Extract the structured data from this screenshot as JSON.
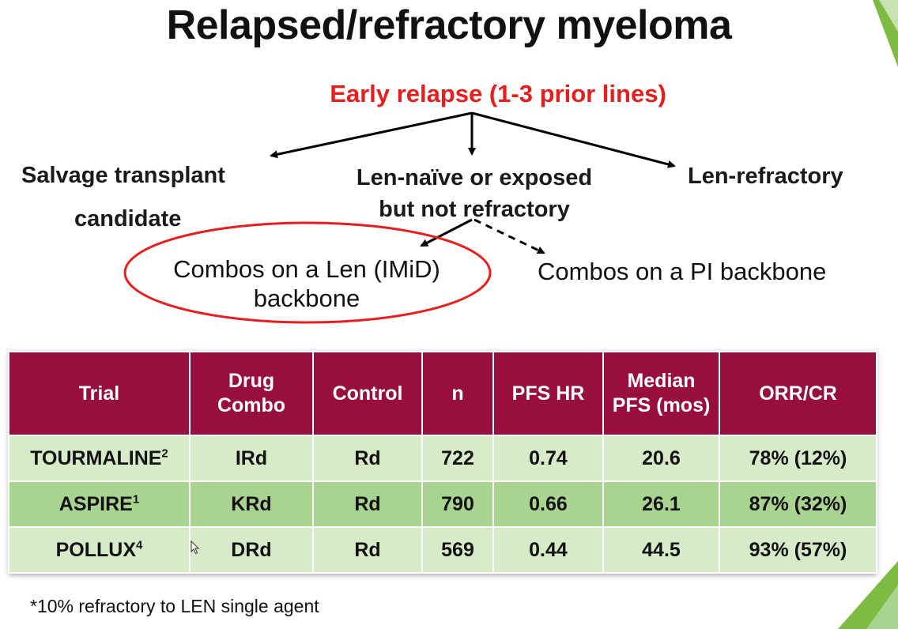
{
  "slide": {
    "title": "Relapsed/refractory myeloma",
    "early_relapse": "Early relapse (1-3 prior lines)",
    "branches": {
      "salvage_line1": "Salvage transplant",
      "salvage_line2": "candidate",
      "len_naive_line1": "Len-naïve or exposed",
      "len_naive_line2": "but not refractory",
      "len_refractory": "Len-refractory"
    },
    "combos": {
      "len_line1": "Combos on a Len (IMiD)",
      "len_line2": "backbone",
      "pi": "Combos on a PI backbone"
    },
    "colors": {
      "highlight_red": "#e81e1e",
      "header_maroon": "#980f3e",
      "row_light": "#d7ebc8",
      "row_mid": "#a9d48f",
      "accent_green": "#7dbb42"
    }
  },
  "table": {
    "headers": {
      "trial": "Trial",
      "drug_line1": "Drug",
      "drug_line2": "Combo",
      "control": "Control",
      "n": "n",
      "pfs_hr": "PFS HR",
      "median_line1": "Median",
      "median_line2": "PFS (mos)",
      "orr": "ORR/CR"
    },
    "rows": [
      {
        "trial": "TOURMALINE",
        "sup": "2",
        "drug": "IRd",
        "control": "Rd",
        "n": "722",
        "pfs_hr": "0.74",
        "median_pfs": "20.6",
        "orr_cr": "78% (12%)"
      },
      {
        "trial": "ASPIRE",
        "sup": "1",
        "drug": "KRd",
        "control": "Rd",
        "n": "790",
        "pfs_hr": "0.66",
        "median_pfs": "26.1",
        "orr_cr": "87% (32%)"
      },
      {
        "trial": "POLLUX",
        "sup": "4",
        "drug": "DRd",
        "control": "Rd",
        "n": "569",
        "pfs_hr": "0.44",
        "median_pfs": "44.5",
        "orr_cr": "93% (57%)"
      }
    ]
  },
  "footnote": "*10% refractory to LEN single agent"
}
